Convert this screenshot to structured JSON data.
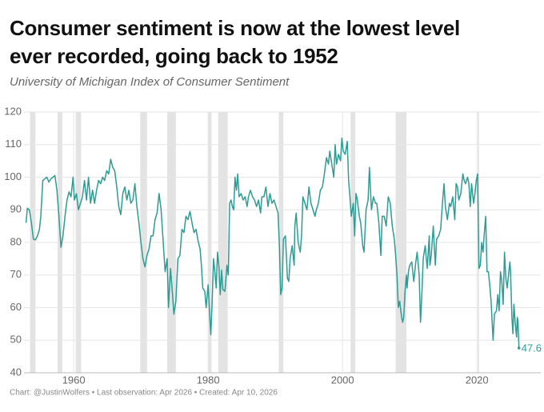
{
  "chart_data": {
    "type": "line",
    "title": [
      "Consumer sentiment is now at the lowest level",
      "ever recorded, going back to 1952"
    ],
    "subtitle": "University of Michigan Index of Consumer Sentiment",
    "source": "Chart: @JustinWolfers • Last observation: Apr 2026 • Created: Apr 10, 2026",
    "xlim": [
      1952.6,
      2029.5
    ],
    "xticks": [
      1960,
      1980,
      2000,
      2020
    ],
    "ylim": [
      40,
      120
    ],
    "yticks": [
      40,
      50,
      60,
      70,
      80,
      90,
      100,
      110,
      120
    ],
    "grid": true,
    "recession_color": "#e3e3e3",
    "recessions": [
      [
        1953.5,
        1954.3
      ],
      [
        1957.6,
        1958.3
      ],
      [
        1960.3,
        1961.1
      ],
      [
        1969.9,
        1970.9
      ],
      [
        1973.9,
        1975.2
      ],
      [
        1980.0,
        1980.5
      ],
      [
        1981.5,
        1982.9
      ],
      [
        1990.5,
        1991.2
      ],
      [
        2001.2,
        2001.9
      ],
      [
        2007.9,
        2009.5
      ],
      [
        2020.1,
        2020.3
      ]
    ],
    "x": [
      1952.9,
      1953.1,
      1953.4,
      1953.7,
      1954.0,
      1954.3,
      1954.6,
      1954.9,
      1955.1,
      1955.4,
      1955.7,
      1956.0,
      1956.3,
      1956.6,
      1956.9,
      1957.2,
      1957.5,
      1957.8,
      1958.1,
      1958.4,
      1958.7,
      1959.0,
      1959.3,
      1959.6,
      1959.9,
      1960.1,
      1960.4,
      1960.7,
      1961.0,
      1961.3,
      1961.6,
      1961.9,
      1962.2,
      1962.5,
      1962.8,
      1963.1,
      1963.4,
      1963.7,
      1964.0,
      1964.3,
      1964.6,
      1964.9,
      1965.2,
      1965.5,
      1965.8,
      1966.1,
      1966.4,
      1966.7,
      1967.0,
      1967.3,
      1967.6,
      1967.9,
      1968.2,
      1968.5,
      1968.8,
      1969.1,
      1969.4,
      1969.7,
      1970.0,
      1970.3,
      1970.6,
      1970.9,
      1971.2,
      1971.5,
      1971.8,
      1972.1,
      1972.4,
      1972.7,
      1973.0,
      1973.3,
      1973.6,
      1973.9,
      1974.1,
      1974.4,
      1974.7,
      1974.9,
      1975.2,
      1975.5,
      1975.8,
      1976.1,
      1976.4,
      1976.7,
      1977.0,
      1977.3,
      1977.6,
      1977.9,
      1978.2,
      1978.5,
      1978.8,
      1979.0,
      1979.2,
      1979.5,
      1979.7,
      1980.0,
      1980.3,
      1980.4,
      1980.6,
      1980.8,
      1981.0,
      1981.2,
      1981.4,
      1981.6,
      1981.8,
      1982.0,
      1982.2,
      1982.5,
      1982.8,
      1983.0,
      1983.2,
      1983.4,
      1983.6,
      1983.8,
      1984.0,
      1984.2,
      1984.4,
      1984.6,
      1984.9,
      1985.2,
      1985.5,
      1985.8,
      1986.0,
      1986.3,
      1986.6,
      1986.9,
      1987.2,
      1987.5,
      1987.8,
      1988.0,
      1988.3,
      1988.6,
      1988.9,
      1989.2,
      1989.5,
      1989.8,
      1990.1,
      1990.4,
      1990.6,
      1990.8,
      1991.0,
      1991.2,
      1991.5,
      1991.8,
      1992.0,
      1992.2,
      1992.5,
      1992.8,
      1992.9,
      1993.1,
      1993.4,
      1993.7,
      1993.9,
      1994.1,
      1994.4,
      1994.7,
      1995.0,
      1995.3,
      1995.6,
      1995.9,
      1996.1,
      1996.4,
      1996.7,
      1997.0,
      1997.3,
      1997.6,
      1997.9,
      1998.1,
      1998.4,
      1998.7,
      1998.9,
      1999.1,
      1999.4,
      1999.7,
      1999.9,
      2000.1,
      2000.4,
      2000.7,
      2000.9,
      2001.1,
      2001.3,
      2001.6,
      2001.8,
      2002.0,
      2002.2,
      2002.5,
      2002.7,
      2003.0,
      2003.2,
      2003.5,
      2003.8,
      2004.0,
      2004.3,
      2004.6,
      2004.9,
      2005.1,
      2005.4,
      2005.7,
      2005.9,
      2006.2,
      2006.5,
      2006.8,
      2007.1,
      2007.4,
      2007.7,
      2007.9,
      2008.1,
      2008.3,
      2008.5,
      2008.8,
      2008.95,
      2009.1,
      2009.3,
      2009.5,
      2009.6,
      2009.8,
      2010.0,
      2010.3,
      2010.6,
      2010.9,
      2011.1,
      2011.4,
      2011.6,
      2011.8,
      2012.0,
      2012.3,
      2012.6,
      2012.9,
      2013.0,
      2013.2,
      2013.5,
      2013.8,
      2014.0,
      2014.3,
      2014.6,
      2014.9,
      2015.1,
      2015.3,
      2015.6,
      2015.9,
      2016.1,
      2016.4,
      2016.7,
      2016.9,
      2017.1,
      2017.3,
      2017.6,
      2017.9,
      2018.1,
      2018.3,
      2018.6,
      2018.8,
      2019.0,
      2019.2,
      2019.5,
      2019.7,
      2019.9,
      2020.1,
      2020.3,
      2020.5,
      2020.7,
      2020.9,
      2021.1,
      2021.3,
      2021.5,
      2021.7,
      2021.9,
      2022.1,
      2022.4,
      2022.6,
      2022.9,
      2023.1,
      2023.3,
      2023.5,
      2023.7,
      2023.9,
      2024.1,
      2024.3,
      2024.5,
      2024.7,
      2024.9,
      2025.0,
      2025.2,
      2025.35,
      2025.5,
      2025.7,
      2025.9,
      2026.0,
      2026.1,
      2026.25
    ],
    "series": [
      {
        "color": "#2f9c94",
        "values": [
          86,
          90.5,
          90,
          86,
          81,
          80.8,
          82,
          84,
          88,
          99,
          99.5,
          100,
          98.5,
          99.5,
          100,
          100.5,
          96,
          88,
          78.5,
          82,
          88,
          93,
          95.5,
          94,
          100,
          93,
          95,
          90,
          92,
          94,
          99,
          93,
          100,
          92,
          96,
          92,
          96,
          99,
          98,
          100,
          99,
          102,
          101,
          105.5,
          103,
          102,
          97,
          91,
          88.5,
          95,
          97,
          93,
          96,
          92,
          93,
          98,
          91,
          86,
          80,
          75,
          72.5,
          76,
          78,
          82,
          82,
          87,
          89,
          95,
          90,
          80.5,
          71,
          75,
          60,
          72,
          64,
          58,
          62,
          75,
          76,
          84,
          83,
          88,
          87,
          89.5,
          86,
          83,
          84,
          80.5,
          78,
          73,
          66,
          65,
          60,
          67,
          55,
          51.7,
          62,
          75,
          71,
          66,
          77,
          72.5,
          64,
          71.5,
          65.5,
          65,
          73,
          70,
          92,
          93,
          91,
          90,
          100,
          96,
          101,
          94,
          95,
          93,
          94,
          91,
          94,
          96,
          94,
          93,
          91,
          93,
          89,
          94,
          94,
          97,
          91,
          95,
          92,
          93,
          91,
          89,
          79,
          64,
          66,
          81,
          82,
          69,
          68,
          75,
          79,
          73,
          85,
          89,
          80,
          77,
          82,
          94,
          92,
          90,
          97,
          92,
          90,
          88,
          90,
          92,
          96,
          97,
          101,
          106,
          104,
          108,
          104,
          100,
          110,
          104,
          107,
          105,
          112,
          108,
          107,
          111,
          99,
          94,
          88,
          92,
          82,
          95,
          93,
          88,
          86,
          79,
          77,
          90,
          93,
          103,
          90,
          94,
          92,
          92,
          86,
          76,
          88,
          88,
          85,
          94,
          92,
          85,
          81,
          76,
          70,
          60,
          62,
          57,
          55.5,
          57,
          65,
          70,
          66,
          71,
          73,
          74,
          68,
          74,
          77,
          70,
          55.5,
          64,
          75,
          79,
          72,
          82,
          73,
          76,
          85,
          73,
          81,
          82,
          84,
          93,
          98,
          91,
          87,
          92,
          91,
          94,
          87,
          98,
          97,
          93,
          95,
          101,
          99,
          98,
          100,
          98,
          91,
          98,
          92,
          95,
          99,
          101,
          72,
          73,
          80,
          77,
          83,
          88,
          71,
          71,
          67,
          62,
          50,
          58,
          59,
          64,
          59,
          71,
          68,
          61,
          77,
          69,
          66,
          70,
          74,
          71,
          57,
          52,
          61,
          55,
          51,
          57,
          56,
          47.6
        ]
      }
    ]
  }
}
